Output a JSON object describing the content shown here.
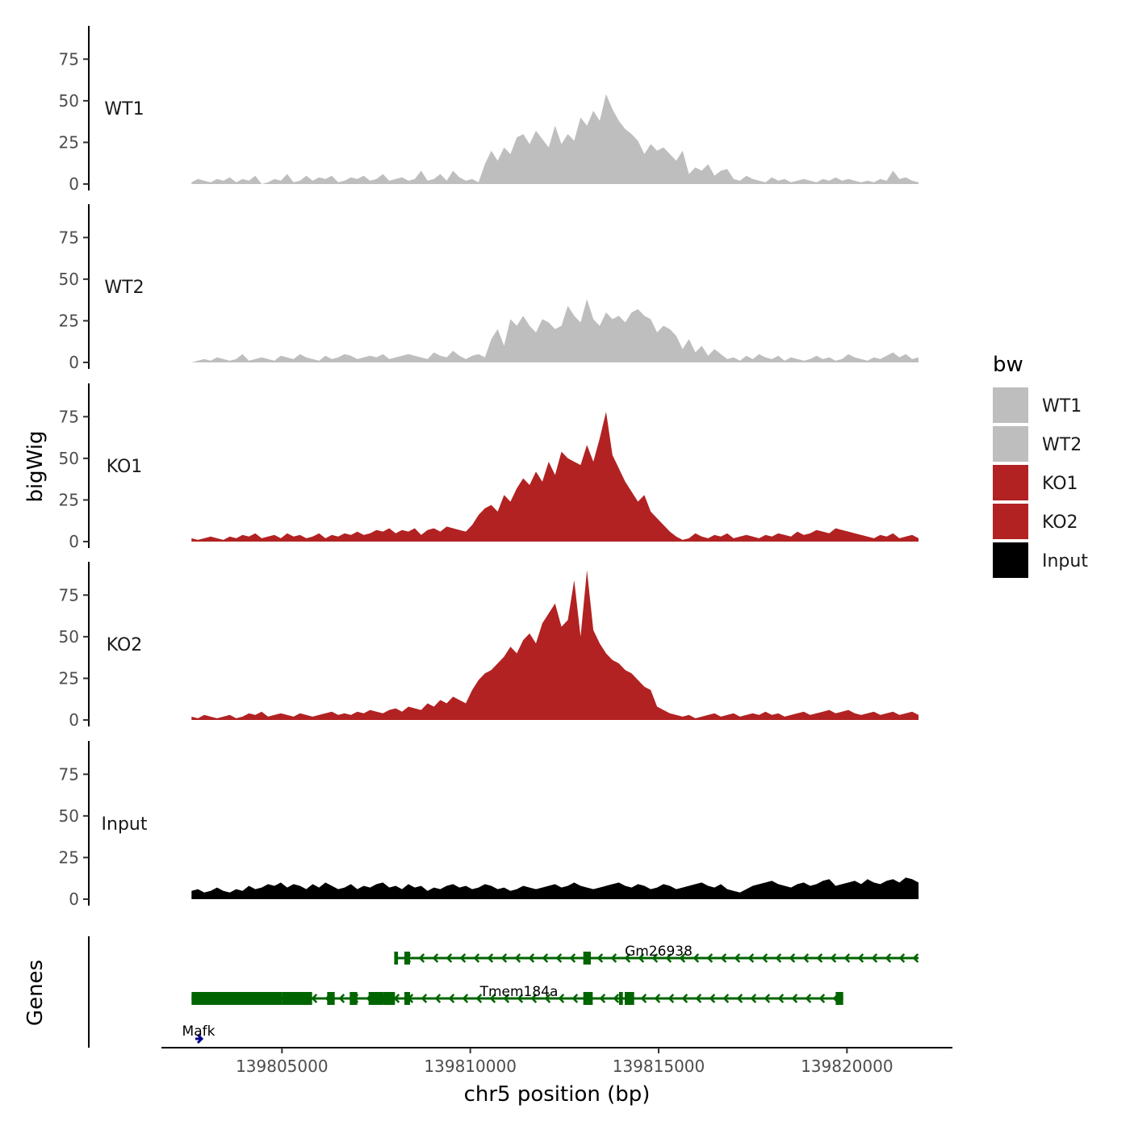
{
  "chart_data": {
    "type": "area",
    "title": "",
    "ylabel": "bigWig",
    "xlabel": "chr5 position (bp)",
    "genes_label": "Genes",
    "xlim": [
      139801800,
      139822800
    ],
    "ylim": [
      0,
      95
    ],
    "y_ticks": [
      0,
      25,
      50,
      75
    ],
    "x_ticks": [
      139805000,
      139810000,
      139815000,
      139820000
    ],
    "x_tick_labels": [
      "139805000",
      "139810000",
      "139815000",
      "139820000"
    ],
    "x_range": [
      139802600,
      139821900
    ],
    "series": [
      {
        "name": "WT1",
        "color": "#bebebe",
        "values": [
          1,
          3,
          2,
          1,
          3,
          2,
          4,
          1,
          3,
          2,
          5,
          0,
          1,
          3,
          2,
          6,
          1,
          2,
          5,
          2,
          4,
          3,
          5,
          1,
          2,
          4,
          3,
          5,
          2,
          3,
          6,
          2,
          3,
          4,
          2,
          3,
          8,
          2,
          3,
          6,
          2,
          8,
          4,
          2,
          3,
          1,
          12,
          20,
          14,
          22,
          18,
          28,
          30,
          24,
          32,
          27,
          22,
          35,
          24,
          30,
          26,
          40,
          35,
          44,
          38,
          54,
          45,
          38,
          33,
          30,
          26,
          18,
          24,
          20,
          22,
          18,
          14,
          20,
          6,
          10,
          8,
          12,
          5,
          8,
          9,
          3,
          2,
          5,
          3,
          2,
          1,
          4,
          2,
          3,
          1,
          2,
          3,
          2,
          1,
          3,
          2,
          4,
          2,
          3,
          2,
          1,
          2,
          1,
          3,
          2,
          8,
          3,
          4,
          2,
          1
        ]
      },
      {
        "name": "WT2",
        "color": "#bebebe",
        "values": [
          0,
          1,
          2,
          1,
          3,
          2,
          1,
          2,
          5,
          1,
          2,
          3,
          2,
          1,
          4,
          3,
          2,
          5,
          3,
          2,
          1,
          4,
          2,
          3,
          5,
          4,
          2,
          3,
          4,
          3,
          5,
          2,
          3,
          4,
          5,
          4,
          3,
          2,
          6,
          4,
          3,
          7,
          4,
          2,
          4,
          5,
          3,
          14,
          20,
          10,
          26,
          22,
          28,
          22,
          18,
          26,
          24,
          20,
          22,
          34,
          28,
          24,
          38,
          26,
          22,
          30,
          26,
          28,
          24,
          30,
          32,
          28,
          26,
          18,
          22,
          20,
          16,
          8,
          14,
          6,
          10,
          4,
          8,
          5,
          2,
          3,
          1,
          4,
          2,
          5,
          3,
          2,
          4,
          1,
          3,
          2,
          1,
          2,
          4,
          2,
          3,
          1,
          2,
          5,
          3,
          2,
          1,
          3,
          2,
          4,
          6,
          3,
          5,
          2,
          3
        ]
      },
      {
        "name": "KO1",
        "color": "#b22222",
        "values": [
          2,
          1,
          2,
          3,
          2,
          1,
          3,
          2,
          4,
          3,
          5,
          2,
          3,
          4,
          2,
          5,
          3,
          4,
          2,
          3,
          5,
          2,
          4,
          3,
          5,
          4,
          6,
          4,
          5,
          7,
          6,
          8,
          5,
          7,
          6,
          8,
          4,
          7,
          8,
          6,
          9,
          8,
          7,
          6,
          10,
          16,
          20,
          22,
          18,
          28,
          24,
          32,
          38,
          34,
          42,
          36,
          48,
          40,
          54,
          50,
          48,
          46,
          58,
          48,
          62,
          78,
          52,
          44,
          36,
          30,
          24,
          28,
          18,
          14,
          10,
          6,
          3,
          1,
          2,
          5,
          3,
          2,
          4,
          3,
          5,
          2,
          3,
          4,
          3,
          2,
          4,
          3,
          5,
          4,
          3,
          6,
          4,
          5,
          7,
          6,
          5,
          8,
          7,
          6,
          5,
          4,
          3,
          2,
          4,
          3,
          5,
          2,
          3,
          4,
          2
        ]
      },
      {
        "name": "KO2",
        "color": "#b22222",
        "values": [
          2,
          1,
          3,
          2,
          1,
          2,
          3,
          1,
          2,
          4,
          3,
          5,
          2,
          3,
          4,
          3,
          2,
          4,
          3,
          2,
          3,
          4,
          5,
          3,
          4,
          3,
          5,
          4,
          6,
          5,
          4,
          6,
          7,
          5,
          8,
          7,
          6,
          10,
          8,
          12,
          10,
          14,
          12,
          10,
          18,
          24,
          28,
          30,
          34,
          38,
          44,
          40,
          48,
          52,
          46,
          58,
          64,
          70,
          56,
          60,
          84,
          50,
          90,
          54,
          46,
          40,
          36,
          34,
          30,
          28,
          24,
          20,
          18,
          8,
          6,
          4,
          3,
          2,
          3,
          1,
          2,
          3,
          4,
          2,
          3,
          4,
          2,
          3,
          4,
          3,
          5,
          3,
          4,
          2,
          3,
          4,
          5,
          3,
          4,
          5,
          6,
          4,
          5,
          6,
          4,
          3,
          4,
          5,
          3,
          4,
          5,
          3,
          4,
          5,
          3
        ]
      },
      {
        "name": "Input",
        "color": "#000000",
        "values": [
          5,
          6,
          4,
          5,
          7,
          5,
          4,
          6,
          5,
          8,
          6,
          7,
          9,
          8,
          10,
          7,
          9,
          8,
          6,
          9,
          7,
          10,
          8,
          6,
          7,
          9,
          6,
          8,
          7,
          9,
          10,
          7,
          8,
          6,
          9,
          7,
          8,
          5,
          7,
          6,
          8,
          9,
          7,
          8,
          6,
          7,
          9,
          8,
          6,
          7,
          5,
          6,
          8,
          7,
          6,
          7,
          8,
          9,
          7,
          8,
          10,
          8,
          7,
          6,
          7,
          8,
          9,
          10,
          8,
          7,
          9,
          8,
          6,
          7,
          9,
          8,
          6,
          7,
          8,
          9,
          10,
          8,
          7,
          9,
          6,
          5,
          4,
          6,
          8,
          9,
          10,
          11,
          9,
          8,
          7,
          9,
          10,
          8,
          9,
          11,
          12,
          8,
          9,
          10,
          11,
          9,
          12,
          10,
          9,
          11,
          12,
          10,
          13,
          12,
          10
        ]
      }
    ],
    "legend": {
      "title": "bw",
      "position": "right",
      "items": [
        {
          "label": "WT1",
          "color": "#bebebe"
        },
        {
          "label": "WT2",
          "color": "#bebebe"
        },
        {
          "label": "KO1",
          "color": "#b22222"
        },
        {
          "label": "KO2",
          "color": "#b22222"
        },
        {
          "label": "Input",
          "color": "#000000"
        }
      ]
    },
    "genes": [
      {
        "name": "Gm26938",
        "strand": "-",
        "color": "#006400",
        "start": 139808000,
        "end": 139821900,
        "exons": [
          [
            139807980,
            139808080
          ],
          [
            139808250,
            139808400
          ],
          [
            139813000,
            139813200
          ]
        ]
      },
      {
        "name": "Tmem184a",
        "strand": "-",
        "color": "#006400",
        "start": 139802600,
        "end": 139819900,
        "exons": [
          [
            139802600,
            139805000
          ],
          [
            139805000,
            139805800
          ],
          [
            139806200,
            139806400
          ],
          [
            139806800,
            139807000
          ],
          [
            139807300,
            139807700
          ],
          [
            139807700,
            139808000
          ],
          [
            139808250,
            139808400
          ],
          [
            139813000,
            139813250
          ],
          [
            139813950,
            139814050
          ],
          [
            139814100,
            139814350
          ],
          [
            139819700,
            139819900
          ]
        ]
      },
      {
        "name": "Mafk",
        "strand": "+",
        "color": "#00008b",
        "start": 139802700,
        "end": 139802850,
        "exons": []
      }
    ]
  }
}
